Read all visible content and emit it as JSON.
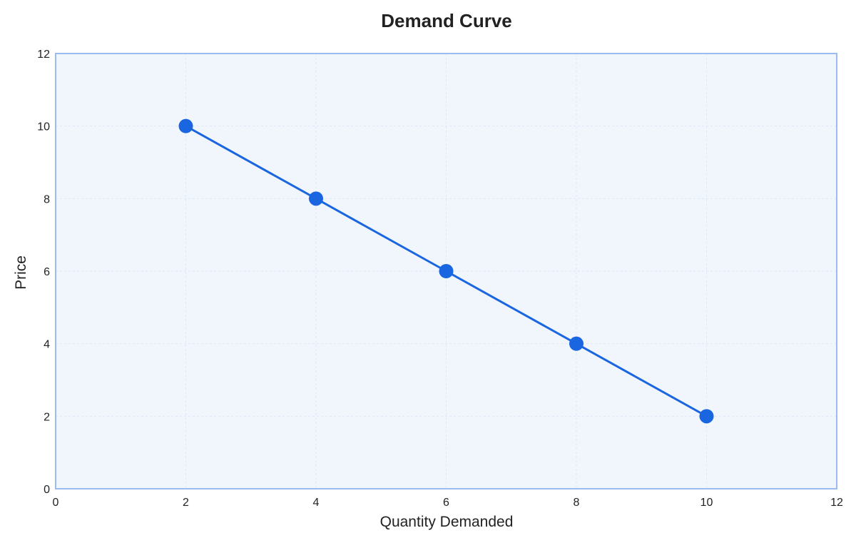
{
  "chart_data": {
    "type": "line",
    "title": "Demand Curve",
    "xlabel": "Quantity Demanded",
    "ylabel": "Price",
    "xlim": [
      0,
      12
    ],
    "ylim": [
      0,
      12
    ],
    "x_ticks": [
      "0",
      "2",
      "4",
      "6",
      "8",
      "10",
      "12"
    ],
    "y_ticks": [
      "0",
      "2",
      "4",
      "6",
      "8",
      "10",
      "12"
    ],
    "grid": true,
    "legend": "none",
    "series": [
      {
        "x": [
          2,
          4,
          6,
          8,
          10
        ],
        "y": [
          10,
          8,
          6,
          4,
          2
        ],
        "color": "#1a66e0",
        "markers": true
      }
    ],
    "colors": {
      "line": "#1a66e0",
      "marker": "#1a66e0",
      "plot_background": "#f1f6fd",
      "plot_border": "#9bbcf0",
      "grid": "#dde7f5"
    }
  }
}
